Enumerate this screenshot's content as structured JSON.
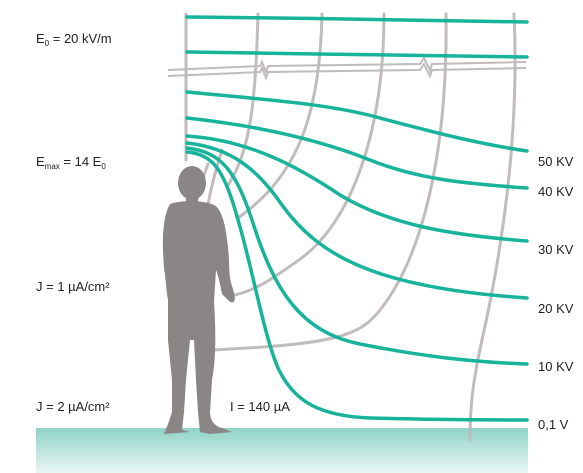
{
  "colors": {
    "equipotential": "#17b39a",
    "field_line": "#c0bcbc",
    "person": "#8a8686",
    "ground_top": "#8fd3c6",
    "ground_bottom": "#e9f6f3",
    "text": "#222222"
  },
  "left_labels": {
    "e0": {
      "symbol": "E",
      "sub": "0",
      "text": " = 20 kV/m"
    },
    "emax": {
      "symbol": "E",
      "sub": "max",
      "text": " = 14 E",
      "sub2": "0"
    },
    "j1": "J = 1 µA/cm²",
    "j2": "J = 2 µA/cm²"
  },
  "current_label": "I = 140 µA",
  "potential_labels": [
    "50 KV",
    "40 KV",
    "30 KV",
    "20 KV",
    "10 KV",
    "0,1 V"
  ]
}
